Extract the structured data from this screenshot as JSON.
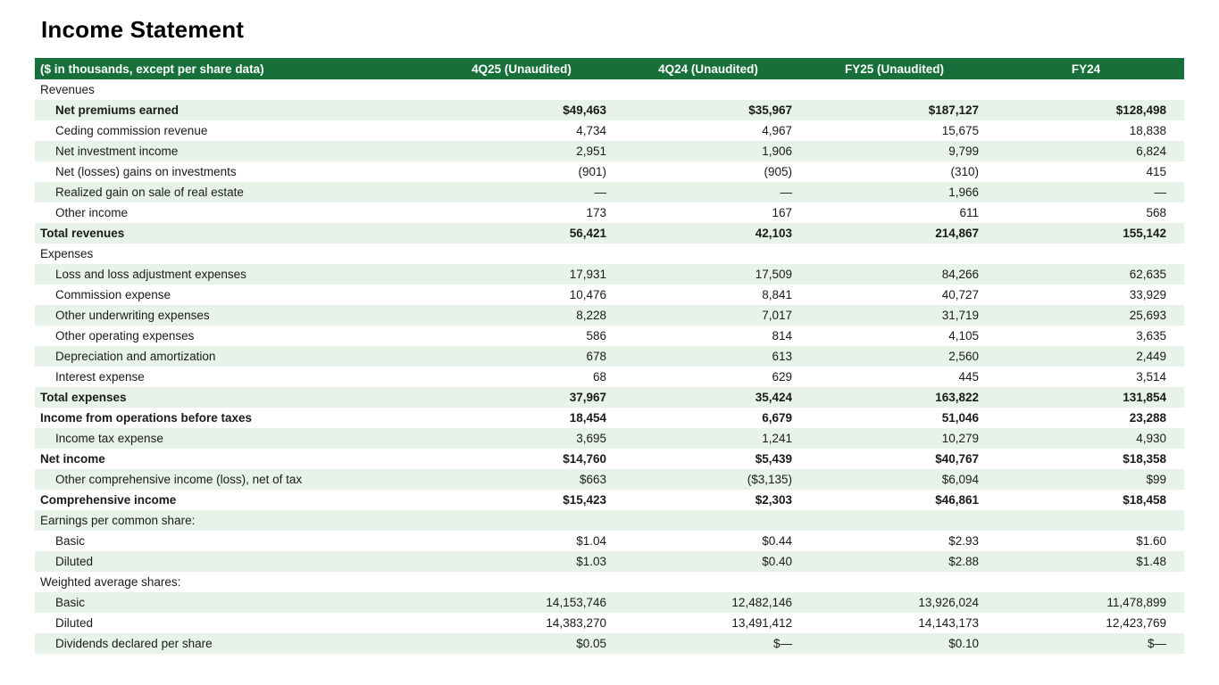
{
  "page": {
    "title": "Income Statement"
  },
  "colors": {
    "header_bg": "#17703a",
    "row_alt_bg": "#e7f2e8"
  },
  "table": {
    "columns": [
      "($ in thousands, except per share data)",
      "4Q25 (Unaudited)",
      "4Q24 (Unaudited)",
      "FY25 (Unaudited)",
      "FY24"
    ],
    "rows": [
      {
        "label": "Revenues",
        "indent": false,
        "bold": false,
        "values": [
          "",
          "",
          "",
          ""
        ]
      },
      {
        "label": "Net premiums earned",
        "indent": true,
        "bold": true,
        "values": [
          "$49,463",
          "$35,967",
          "$187,127",
          "$128,498"
        ]
      },
      {
        "label": "Ceding commission revenue",
        "indent": true,
        "bold": false,
        "values": [
          "4,734",
          "4,967",
          "15,675",
          "18,838"
        ]
      },
      {
        "label": "Net investment income",
        "indent": true,
        "bold": false,
        "values": [
          "2,951",
          "1,906",
          "9,799",
          "6,824"
        ]
      },
      {
        "label": "Net (losses) gains on investments",
        "indent": true,
        "bold": false,
        "values": [
          "(901)",
          "(905)",
          "(310)",
          "415"
        ]
      },
      {
        "label": "Realized gain on sale of real estate",
        "indent": true,
        "bold": false,
        "values": [
          "—",
          "—",
          "1,966",
          "—"
        ]
      },
      {
        "label": "Other income",
        "indent": true,
        "bold": false,
        "values": [
          "173",
          "167",
          "611",
          "568"
        ]
      },
      {
        "label": "Total revenues",
        "indent": false,
        "bold": true,
        "values": [
          "56,421",
          "42,103",
          "214,867",
          "155,142"
        ]
      },
      {
        "label": "Expenses",
        "indent": false,
        "bold": false,
        "values": [
          "",
          "",
          "",
          ""
        ]
      },
      {
        "label": "Loss and loss adjustment expenses",
        "indent": true,
        "bold": false,
        "values": [
          "17,931",
          "17,509",
          "84,266",
          "62,635"
        ]
      },
      {
        "label": "Commission expense",
        "indent": true,
        "bold": false,
        "values": [
          "10,476",
          "8,841",
          "40,727",
          "33,929"
        ]
      },
      {
        "label": "Other underwriting expenses",
        "indent": true,
        "bold": false,
        "values": [
          "8,228",
          "7,017",
          "31,719",
          "25,693"
        ]
      },
      {
        "label": "Other operating expenses",
        "indent": true,
        "bold": false,
        "values": [
          "586",
          "814",
          "4,105",
          "3,635"
        ]
      },
      {
        "label": "Depreciation and amortization",
        "indent": true,
        "bold": false,
        "values": [
          "678",
          "613",
          "2,560",
          "2,449"
        ]
      },
      {
        "label": "Interest expense",
        "indent": true,
        "bold": false,
        "values": [
          "68",
          "629",
          "445",
          "3,514"
        ]
      },
      {
        "label": "Total expenses",
        "indent": false,
        "bold": true,
        "values": [
          "37,967",
          "35,424",
          "163,822",
          "131,854"
        ]
      },
      {
        "label": "Income from operations before taxes",
        "indent": false,
        "bold": true,
        "values": [
          "18,454",
          "6,679",
          "51,046",
          "23,288"
        ]
      },
      {
        "label": "Income tax expense",
        "indent": true,
        "bold": false,
        "values": [
          "3,695",
          "1,241",
          "10,279",
          "4,930"
        ]
      },
      {
        "label": "Net income",
        "indent": false,
        "bold": true,
        "values": [
          "$14,760",
          "$5,439",
          "$40,767",
          "$18,358"
        ]
      },
      {
        "label": "Other comprehensive income (loss), net of tax",
        "indent": true,
        "bold": false,
        "values": [
          "$663",
          "($3,135)",
          "$6,094",
          "$99"
        ]
      },
      {
        "label": "Comprehensive income",
        "indent": false,
        "bold": true,
        "values": [
          "$15,423",
          "$2,303",
          "$46,861",
          "$18,458"
        ]
      },
      {
        "label": "Earnings per common share:",
        "indent": false,
        "bold": false,
        "values": [
          "",
          "",
          "",
          ""
        ]
      },
      {
        "label": "Basic",
        "indent": true,
        "bold": false,
        "values": [
          "$1.04",
          "$0.44",
          "$2.93",
          "$1.60"
        ]
      },
      {
        "label": "Diluted",
        "indent": true,
        "bold": false,
        "values": [
          "$1.03",
          "$0.40",
          "$2.88",
          "$1.48"
        ]
      },
      {
        "label": "Weighted average shares:",
        "indent": false,
        "bold": false,
        "values": [
          "",
          "",
          "",
          ""
        ]
      },
      {
        "label": "Basic",
        "indent": true,
        "bold": false,
        "values": [
          "14,153,746",
          "12,482,146",
          "13,926,024",
          "11,478,899"
        ]
      },
      {
        "label": "Diluted",
        "indent": true,
        "bold": false,
        "values": [
          "14,383,270",
          "13,491,412",
          "14,143,173",
          "12,423,769"
        ]
      },
      {
        "label": "Dividends declared per share",
        "indent": true,
        "bold": false,
        "values": [
          "$0.05",
          "$—",
          "$0.10",
          "$—"
        ]
      }
    ]
  }
}
